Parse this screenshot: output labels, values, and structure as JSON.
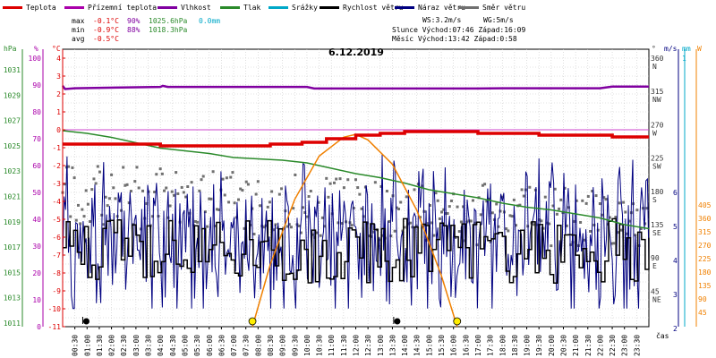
{
  "chart_data": {
    "type": "line",
    "title": "6.12.2019",
    "xlabel": "čas",
    "legend": [
      {
        "label": "Teplota",
        "color": "#dd0000"
      },
      {
        "label": "Přízemní teplota",
        "color": "#aa00aa"
      },
      {
        "label": "Vlhkost",
        "color": "#8000a0"
      },
      {
        "label": "Tlak",
        "color": "#2a8a2a"
      },
      {
        "label": "Srážky",
        "color": "#00a8c8"
      },
      {
        "label": "Rychlost větru",
        "color": "#000000"
      },
      {
        "label": "Náraz větru",
        "color": "#000080"
      },
      {
        "label": "Směr větru",
        "color": "#707070"
      }
    ],
    "stats": {
      "max_label": "max",
      "max_temp": "-0.1°C",
      "max_hum": "90%",
      "max_press": "1025.6hPa",
      "max_rain": "0.0mm",
      "min_label": "min",
      "min_temp": "-0.9°C",
      "min_hum": "88%",
      "min_press": "1018.3hPa",
      "avg_label": "avg",
      "avg_temp": "-0.5°C",
      "ws": "WS:3.2m/s",
      "wg": "WG:5m/s",
      "sun": "Slunce Východ:07:46  Západ:16:09",
      "moon": "Měsíc  Východ:13:42  Západ:0:58"
    },
    "axes": {
      "hpa_unit": "hPa",
      "hpa_ticks": [
        "1031",
        "1029",
        "1027",
        "1025",
        "1023",
        "1021",
        "1019",
        "1017",
        "1015",
        "1013",
        "1011"
      ],
      "pct_unit": "%",
      "pct_ticks": [
        "100",
        "90",
        "80",
        "70",
        "60",
        "50",
        "40",
        "30",
        "20",
        "10",
        "0"
      ],
      "c_unit": "°C",
      "c_ticks": [
        "4",
        "3",
        "2",
        "1",
        "0",
        "-1",
        "-2",
        "-3",
        "-4",
        "-5",
        "-6",
        "-7",
        "-8",
        "-9",
        "-10",
        "-11"
      ],
      "deg_unit": "°",
      "dir_ticks": [
        {
          "deg": "360",
          "dir": "N"
        },
        {
          "deg": "315",
          "dir": "NW"
        },
        {
          "deg": "270",
          "dir": "W"
        },
        {
          "deg": "225",
          "dir": "SW"
        },
        {
          "deg": "180",
          "dir": "S"
        },
        {
          "deg": "135",
          "dir": "SE"
        },
        {
          "deg": "90",
          "dir": "E"
        },
        {
          "deg": "45",
          "dir": "NE"
        }
      ],
      "ms_unit": "m/s",
      "ms_ticks": [
        "6",
        "5",
        "4",
        "3",
        "2",
        "1"
      ],
      "mm_unit": "mm",
      "mm_top": "1",
      "w_unit": "W",
      "w_ticks": [
        "405",
        "360",
        "315",
        "270",
        "225",
        "180",
        "135",
        "90",
        "45"
      ],
      "x_ticks": [
        "00:30",
        "01:00",
        "01:30",
        "02:00",
        "02:30",
        "03:00",
        "03:30",
        "04:00",
        "04:30",
        "05:00",
        "05:30",
        "06:00",
        "06:30",
        "07:00",
        "07:30",
        "08:00",
        "08:30",
        "09:00",
        "09:30",
        "10:00",
        "10:30",
        "11:00",
        "11:30",
        "12:00",
        "12:30",
        "13:00",
        "13:30",
        "14:00",
        "14:30",
        "15:00",
        "15:30",
        "16:00",
        "16:30",
        "17:00",
        "17:30",
        "18:00",
        "18:30",
        "19:00",
        "19:30",
        "20:00",
        "20:30",
        "21:00",
        "21:30",
        "22:00",
        "22:30",
        "23:00",
        "23:30"
      ]
    },
    "series": {
      "temperature_c": {
        "x_h": [
          0,
          2,
          4,
          6,
          7.5,
          8.5,
          9.8,
          10.8,
          12,
          13,
          14,
          15.5,
          17,
          18,
          19.5,
          20.5,
          21.5,
          22.5,
          24
        ],
        "y": [
          -0.8,
          -0.8,
          -0.9,
          -0.9,
          -0.9,
          -0.8,
          -0.7,
          -0.5,
          -0.3,
          -0.2,
          -0.1,
          -0.1,
          -0.2,
          -0.2,
          -0.3,
          -0.3,
          -0.3,
          -0.4,
          -0.4
        ]
      },
      "humidity_pct": {
        "x_h": [
          0,
          0.1,
          0.5,
          4,
          4.1,
          4.3,
          10,
          10.3,
          17,
          18,
          22,
          22.5,
          24
        ],
        "y": [
          89.7,
          88.5,
          88.8,
          89.3,
          89.7,
          89.3,
          89.3,
          88.7,
          88.7,
          88.8,
          88.8,
          89.4,
          89.4
        ]
      },
      "pressure_hpa": {
        "x_h": [
          0,
          1,
          2,
          3,
          4,
          5,
          6,
          7,
          8,
          9,
          10,
          11,
          12,
          13,
          14,
          15,
          16,
          17,
          18,
          19,
          20,
          21,
          22,
          23,
          24
        ],
        "y": [
          1025.6,
          1025.4,
          1025.1,
          1024.7,
          1024.3,
          1024.1,
          1023.9,
          1023.6,
          1023.5,
          1023.4,
          1023.2,
          1022.8,
          1022.4,
          1022.1,
          1021.7,
          1021.2,
          1020.9,
          1020.6,
          1020.2,
          1019.9,
          1019.7,
          1019.4,
          1019.1,
          1018.6,
          1018.3
        ]
      },
      "solar_w": {
        "x_h": [
          7.77,
          8.5,
          9.5,
          10.5,
          11.5,
          12.0,
          12.5,
          13.5,
          14.5,
          15.5,
          16.15
        ],
        "y": [
          0,
          115,
          235,
          315,
          350,
          355,
          345,
          300,
          215,
          95,
          0
        ]
      },
      "wind_speed_ms_avg": 2.1,
      "wind_gust_ms_range": [
        0.5,
        5.5
      ],
      "wind_direction_deg_range": [
        110,
        220
      ]
    },
    "markers": [
      {
        "type": "sun",
        "label": "Východ",
        "x_h": 7.77
      },
      {
        "type": "sun",
        "label": "Západ",
        "x_h": 16.15
      },
      {
        "type": "moon",
        "label": "Západ",
        "x_h": 0.97
      },
      {
        "type": "moon",
        "label": "Východ",
        "x_h": 13.7
      }
    ]
  }
}
